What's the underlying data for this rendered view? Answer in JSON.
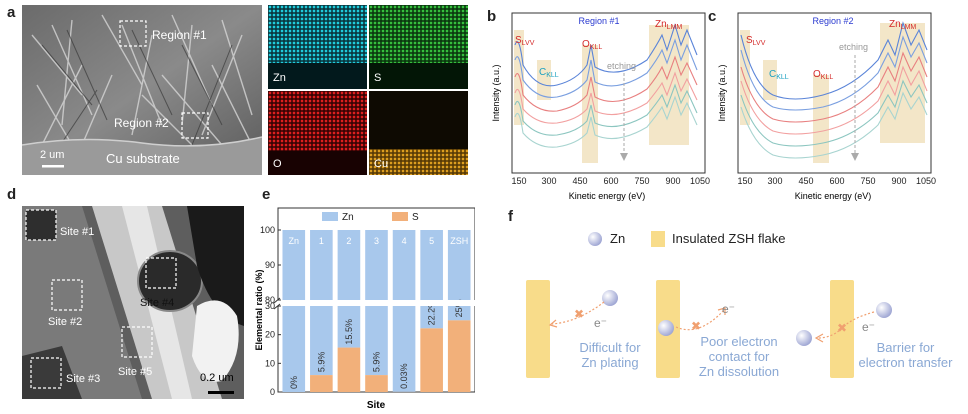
{
  "panel_labels": {
    "a": "a",
    "b": "b",
    "c": "c",
    "d": "d",
    "e": "e",
    "f": "f"
  },
  "panel_a": {
    "region1": "Region #1",
    "region2": "Region #2",
    "substrate": "Cu substrate",
    "scale": "2 um",
    "maps": [
      {
        "label": "Zn",
        "color": "#1ec8d8"
      },
      {
        "label": "S",
        "color": "#2fb43a"
      },
      {
        "label": "O",
        "color": "#d41818"
      },
      {
        "label": "Cu",
        "color": "#c88a12"
      }
    ]
  },
  "panel_b": {
    "title": "Region #1",
    "ylabel": "Intensity (a.u.)",
    "xlabel": "Kinetic energy (eV)",
    "slvv": "S",
    "slvv_sub": "LVV",
    "ckll": "C",
    "ckll_sub": "KLL",
    "okll": "O",
    "okll_sub": "KLL",
    "znlmm": "Zn",
    "znlmm_sub": "LMM",
    "etching": "etching",
    "ticks": [
      "150",
      "300",
      "450",
      "600",
      "750",
      "900",
      "1050"
    ]
  },
  "panel_c": {
    "title": "Region #2",
    "ylabel": "Intensity (a.u.)",
    "xlabel": "Kinetic energy (eV)",
    "slvv": "S",
    "slvv_sub": "LVV",
    "ckll": "C",
    "ckll_sub": "KLL",
    "okll": "O",
    "okll_sub": "KLL",
    "znlmm": "Zn",
    "znlmm_sub": "LMM",
    "etching": "etching",
    "ticks": [
      "150",
      "300",
      "450",
      "600",
      "750",
      "900",
      "1050"
    ]
  },
  "panel_d": {
    "sites": [
      "Site #1",
      "Site #2",
      "Site #3",
      "Site #4",
      "Site #5"
    ],
    "scale": "0.2 um"
  },
  "chart_data": {
    "type": "bar",
    "title": "",
    "xlabel": "Site",
    "ylabel": "Elemental ratio (%)",
    "categories": [
      "Zn",
      "1",
      "2",
      "3",
      "4",
      "5",
      "ZSH"
    ],
    "series": [
      {
        "name": "Zn",
        "color": "#a8c8ec",
        "values": [
          100,
          94.1,
          84.5,
          94.1,
          99.97,
          77.8,
          75
        ]
      },
      {
        "name": "S",
        "color": "#f2b07a",
        "values": [
          0,
          5.9,
          15.5,
          5.9,
          0.03,
          22.2,
          25
        ]
      }
    ],
    "data_labels": [
      "0%",
      "5.9%",
      "15.5%",
      "5.9%",
      "0.03%",
      "22.2%",
      "25%"
    ],
    "yticks": [
      "0",
      "10",
      "20",
      "30",
      "80",
      "90",
      "100"
    ],
    "ylim": [
      0,
      100
    ],
    "axis_break": [
      30,
      80
    ]
  },
  "panel_f": {
    "legend_zn": "Zn",
    "legend_flake": "Insulated ZSH flake",
    "electron": "e⁻",
    "cap1_l1": "Difficult for",
    "cap1_l2": "Zn plating",
    "cap2_l1": "Poor electron",
    "cap2_l2": "contact for",
    "cap2_l3": "Zn dissolution",
    "cap3_l1": "Barrier for",
    "cap3_l2": "electron transfer"
  }
}
